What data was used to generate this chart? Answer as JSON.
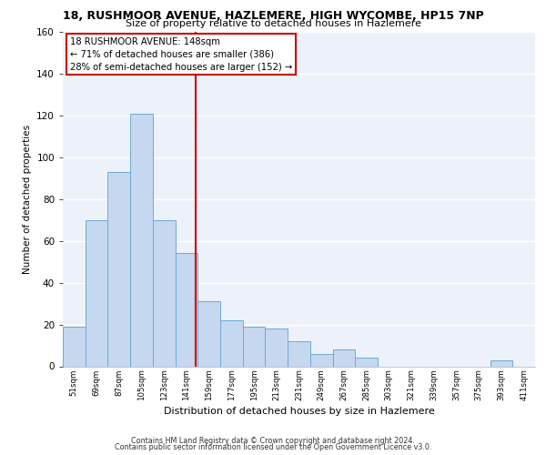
{
  "title_line1": "18, RUSHMOOR AVENUE, HAZLEMERE, HIGH WYCOMBE, HP15 7NP",
  "title_line2": "Size of property relative to detached houses in Hazlemere",
  "xlabel": "Distribution of detached houses by size in Hazlemere",
  "ylabel": "Number of detached properties",
  "categories": [
    "51sqm",
    "69sqm",
    "87sqm",
    "105sqm",
    "123sqm",
    "141sqm",
    "159sqm",
    "177sqm",
    "195sqm",
    "213sqm",
    "231sqm",
    "249sqm",
    "267sqm",
    "285sqm",
    "303sqm",
    "321sqm",
    "339sqm",
    "357sqm",
    "375sqm",
    "393sqm",
    "411sqm"
  ],
  "values": [
    19,
    70,
    93,
    121,
    70,
    54,
    31,
    22,
    19,
    18,
    12,
    6,
    8,
    4,
    0,
    0,
    0,
    0,
    0,
    3,
    0
  ],
  "bar_color": "#c5d8f0",
  "bar_edge_color": "#6aaad4",
  "annotation_box_text": "18 RUSHMOOR AVENUE: 148sqm\n← 71% of detached houses are smaller (386)\n28% of semi-detached houses are larger (152) →",
  "vline_color": "#cc0000",
  "ylim": [
    0,
    160
  ],
  "yticks": [
    0,
    20,
    40,
    60,
    80,
    100,
    120,
    140,
    160
  ],
  "footer_line1": "Contains HM Land Registry data © Crown copyright and database right 2024.",
  "footer_line2": "Contains public sector information licensed under the Open Government Licence v3.0.",
  "background_color": "#edf2fa",
  "grid_color": "#ffffff",
  "annotation_box_color": "#ffffff",
  "annotation_box_edge_color": "#cc0000"
}
